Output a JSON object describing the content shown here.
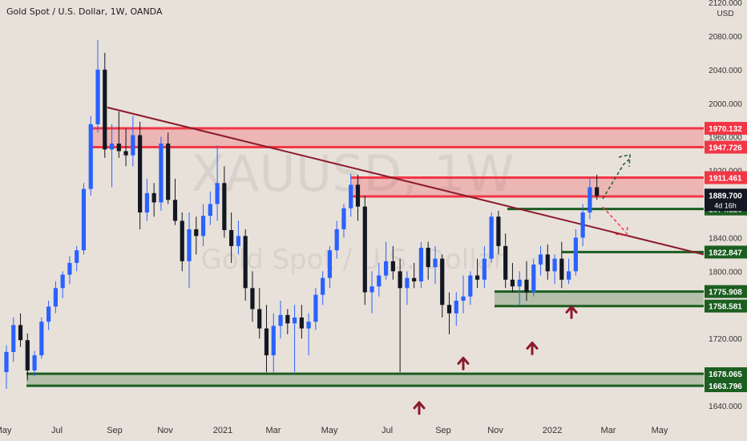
{
  "header": {
    "title": "Gold Spot / U.S. Dollar, 1W, OANDA"
  },
  "watermark": {
    "symbol": "XAUUSD, 1W",
    "name": "Gold Spot / U.S. Dollar"
  },
  "price_axis": {
    "currency": "USD",
    "ticks": [
      "2120.000",
      "2080.000",
      "2040.000",
      "2000.000",
      "1960.000",
      "1920.000",
      "1880.000",
      "1840.000",
      "1800.000",
      "1760.000",
      "1720.000",
      "1680.000",
      "1640.000"
    ],
    "last_price": "1889.700",
    "countdown": "4d 16h"
  },
  "time_axis": {
    "labels": [
      "May",
      "Jul",
      "Sep",
      "Nov",
      "2021",
      "Mar",
      "May",
      "Jul",
      "Sep",
      "Nov",
      "2022",
      "Mar",
      "May"
    ]
  },
  "chart_data": {
    "type": "candlestick",
    "title": "Gold Spot / U.S. Dollar, 1W, OANDA",
    "y_axis": {
      "range": [
        1630,
        2120
      ],
      "unit": "USD"
    },
    "x_axis": {
      "labels": [
        "May",
        "Jul",
        "Sep",
        "Nov",
        "2021",
        "Mar",
        "May",
        "Jul",
        "Sep",
        "Nov",
        "2022",
        "Mar",
        "May"
      ]
    },
    "levels": [
      {
        "label": "1970.132",
        "price": 1970.132,
        "kind": "resistance",
        "color": "#f23645"
      },
      {
        "label": "1947.726",
        "price": 1947.726,
        "kind": "resistance",
        "color": "#f23645"
      },
      {
        "label": "1911.461",
        "price": 1911.461,
        "kind": "resistance",
        "color": "#f23645"
      },
      {
        "label": "1889.038",
        "price": 1889.038,
        "kind": "resistance",
        "color": "#f23645"
      },
      {
        "label": "1874.126",
        "price": 1874.126,
        "kind": "support",
        "color": "#1b5e20"
      },
      {
        "label": "1822.847",
        "price": 1822.847,
        "kind": "support",
        "color": "#1b5e20"
      },
      {
        "label": "1775.908",
        "price": 1775.908,
        "kind": "support",
        "color": "#1b5e20"
      },
      {
        "label": "1758.581",
        "price": 1758.581,
        "kind": "support",
        "color": "#1b5e20"
      },
      {
        "label": "1678.065",
        "price": 1678.065,
        "kind": "support",
        "color": "#1b5e20"
      },
      {
        "label": "1663.796",
        "price": 1663.796,
        "kind": "support",
        "color": "#1b5e20"
      }
    ],
    "zones": [
      {
        "from": 1947.726,
        "to": 1970.132,
        "color": "#f23645"
      },
      {
        "from": 1889.038,
        "to": 1911.461,
        "color": "#f23645"
      },
      {
        "from": 1758.581,
        "to": 1775.908,
        "color": "#1b5e20"
      },
      {
        "from": 1663.796,
        "to": 1678.065,
        "color": "#1b5e20"
      }
    ],
    "trendline": {
      "from_price": 1995,
      "to_price": 1820,
      "color": "#8b1a2b"
    },
    "last_price": 1889.7,
    "colors": {
      "up": "#2962ff",
      "down": "#131722",
      "last_price_bg": "#131722"
    },
    "arrows": [
      1663,
      1716,
      1734,
      1777
    ],
    "candles": [
      [
        1680,
        1712,
        1660,
        1704
      ],
      [
        1704,
        1745,
        1692,
        1736
      ],
      [
        1736,
        1750,
        1710,
        1718
      ],
      [
        1718,
        1726,
        1670,
        1682
      ],
      [
        1682,
        1705,
        1675,
        1700
      ],
      [
        1700,
        1745,
        1696,
        1740
      ],
      [
        1740,
        1765,
        1730,
        1758
      ],
      [
        1758,
        1788,
        1750,
        1780
      ],
      [
        1780,
        1800,
        1768,
        1796
      ],
      [
        1796,
        1818,
        1785,
        1810
      ],
      [
        1810,
        1830,
        1800,
        1825
      ],
      [
        1825,
        1905,
        1820,
        1898
      ],
      [
        1898,
        1985,
        1890,
        1975
      ],
      [
        1975,
        2075,
        1965,
        2040
      ],
      [
        2040,
        2060,
        1935,
        1945
      ],
      [
        1945,
        1975,
        1900,
        1952
      ],
      [
        1952,
        1990,
        1935,
        1943
      ],
      [
        1943,
        1970,
        1925,
        1938
      ],
      [
        1938,
        1985,
        1925,
        1962
      ],
      [
        1962,
        1978,
        1850,
        1870
      ],
      [
        1870,
        1910,
        1860,
        1893
      ],
      [
        1893,
        1905,
        1865,
        1882
      ],
      [
        1882,
        1960,
        1872,
        1952
      ],
      [
        1952,
        1965,
        1880,
        1885
      ],
      [
        1885,
        1910,
        1855,
        1860
      ],
      [
        1860,
        1870,
        1800,
        1812
      ],
      [
        1812,
        1870,
        1780,
        1850
      ],
      [
        1850,
        1865,
        1820,
        1842
      ],
      [
        1842,
        1880,
        1830,
        1866
      ],
      [
        1866,
        1895,
        1855,
        1880
      ],
      [
        1880,
        1950,
        1860,
        1905
      ],
      [
        1905,
        1925,
        1840,
        1849
      ],
      [
        1849,
        1870,
        1810,
        1830
      ],
      [
        1830,
        1860,
        1820,
        1842
      ],
      [
        1842,
        1850,
        1765,
        1780
      ],
      [
        1780,
        1800,
        1740,
        1755
      ],
      [
        1755,
        1780,
        1720,
        1732
      ],
      [
        1732,
        1760,
        1680,
        1700
      ],
      [
        1700,
        1750,
        1680,
        1735
      ],
      [
        1735,
        1765,
        1720,
        1748
      ],
      [
        1748,
        1755,
        1725,
        1738
      ],
      [
        1738,
        1760,
        1680,
        1745
      ],
      [
        1745,
        1760,
        1720,
        1732
      ],
      [
        1732,
        1750,
        1700,
        1740
      ],
      [
        1740,
        1780,
        1730,
        1772
      ],
      [
        1772,
        1800,
        1760,
        1792
      ],
      [
        1792,
        1830,
        1780,
        1825
      ],
      [
        1825,
        1860,
        1815,
        1850
      ],
      [
        1850,
        1880,
        1840,
        1875
      ],
      [
        1875,
        1916,
        1865,
        1903
      ],
      [
        1903,
        1915,
        1860,
        1877
      ],
      [
        1877,
        1890,
        1760,
        1775
      ],
      [
        1775,
        1800,
        1750,
        1782
      ],
      [
        1782,
        1810,
        1770,
        1795
      ],
      [
        1795,
        1835,
        1790,
        1812
      ],
      [
        1812,
        1830,
        1790,
        1800
      ],
      [
        1800,
        1815,
        1680,
        1780
      ],
      [
        1780,
        1800,
        1760,
        1792
      ],
      [
        1792,
        1810,
        1780,
        1788
      ],
      [
        1788,
        1835,
        1780,
        1828
      ],
      [
        1828,
        1835,
        1790,
        1805
      ],
      [
        1805,
        1830,
        1785,
        1815
      ],
      [
        1815,
        1820,
        1745,
        1760
      ],
      [
        1760,
        1775,
        1725,
        1750
      ],
      [
        1750,
        1775,
        1735,
        1765
      ],
      [
        1765,
        1795,
        1750,
        1770
      ],
      [
        1770,
        1800,
        1760,
        1795
      ],
      [
        1795,
        1815,
        1780,
        1790
      ],
      [
        1790,
        1830,
        1780,
        1815
      ],
      [
        1815,
        1870,
        1810,
        1865
      ],
      [
        1865,
        1872,
        1820,
        1830
      ],
      [
        1830,
        1845,
        1780,
        1790
      ],
      [
        1790,
        1810,
        1775,
        1782
      ],
      [
        1782,
        1800,
        1760,
        1790
      ],
      [
        1790,
        1812,
        1765,
        1775
      ],
      [
        1775,
        1815,
        1770,
        1808
      ],
      [
        1808,
        1830,
        1795,
        1820
      ],
      [
        1820,
        1832,
        1790,
        1800
      ],
      [
        1800,
        1820,
        1785,
        1815
      ],
      [
        1815,
        1835,
        1780,
        1790
      ],
      [
        1790,
        1815,
        1785,
        1800
      ],
      [
        1800,
        1850,
        1795,
        1840
      ],
      [
        1840,
        1880,
        1830,
        1870
      ],
      [
        1870,
        1911,
        1862,
        1900
      ],
      [
        1900,
        1915,
        1885,
        1889.7
      ]
    ]
  }
}
